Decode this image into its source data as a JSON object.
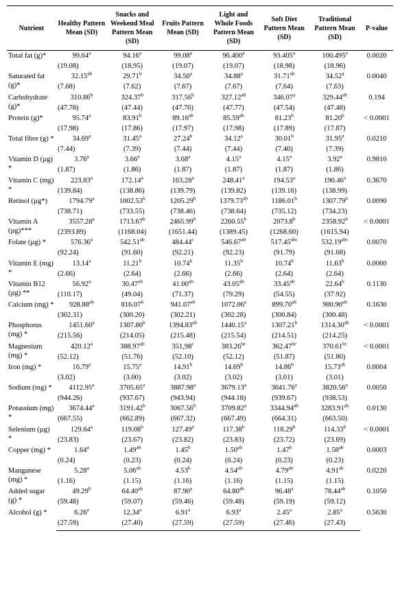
{
  "table": {
    "columns": [
      {
        "label": "Nutrient"
      },
      {
        "label": "Healthy Pattern Mean (SD)"
      },
      {
        "label": "Snacks and Weekend Meal Pattern Mean (SD)"
      },
      {
        "label": "Fruits Pattern Mean (SD)"
      },
      {
        "label": "Light and Whole Foods Pattern Mean (SD)"
      },
      {
        "label": "Soft Diet Pattern Mean (SD)"
      },
      {
        "label": "Traditional Pattern Mean (SD)"
      },
      {
        "label": "P-value"
      }
    ],
    "rows": [
      {
        "nutrient": "Total fat (g)*",
        "cells": [
          {
            "mean": "99.64",
            "sup": "a",
            "sd": "(19.08)"
          },
          {
            "mean": "94.16",
            "sup": "a",
            "sd": "(18.95)"
          },
          {
            "mean": "99.08",
            "sup": "a",
            "sd": "(19.07)"
          },
          {
            "mean": "96.400",
            "sup": "a",
            "sd": "(19.07)"
          },
          {
            "mean": "93.405",
            "sup": "a",
            "sd": "(18.98)"
          },
          {
            "mean": "100.495",
            "sup": "a",
            "sd": "(18.96)"
          }
        ],
        "pvalue": "0.0020"
      },
      {
        "nutrient": "Saturated fat (g)*",
        "cells": [
          {
            "mean": "32.15",
            "sup": "ab",
            "sd": "(7.68)"
          },
          {
            "mean": "29.71",
            "sup": "b",
            "sd": "(7.62)"
          },
          {
            "mean": "34.50",
            "sup": "a",
            "sd": "(7.67)"
          },
          {
            "mean": "34.88",
            "sup": "a",
            "sd": "(7.67)"
          },
          {
            "mean": "31.71",
            "sup": "ab",
            "sd": "(7.64)"
          },
          {
            "mean": "34.52",
            "sup": "a",
            "sd": "(7.63)"
          }
        ],
        "pvalue": "0.0040"
      },
      {
        "nutrient": "Carbohydrate (g)*",
        "cells": [
          {
            "mean": "310.86",
            "sup": "b",
            "sd": "(47.78)"
          },
          {
            "mean": "324.37",
            "sup": "b",
            "sd": "(47.44)"
          },
          {
            "mean": "317.56",
            "sup": "b",
            "sd": "(47.76)"
          },
          {
            "mean": "327.12",
            "sup": "ab",
            "sd": "(47.77)"
          },
          {
            "mean": "346.07",
            "sup": "a",
            "sd": "(47.54)"
          },
          {
            "mean": "329.44",
            "sup": "ab",
            "sd": "(47.48)"
          }
        ],
        "pvalue": "0.194"
      },
      {
        "nutrient": "Protein (g)*",
        "cells": [
          {
            "mean": "95.74",
            "sup": "a",
            "sd": "(17.98)"
          },
          {
            "mean": "83.91",
            "sup": "b",
            "sd": "(17.86)"
          },
          {
            "mean": "89.16",
            "sup": "ab",
            "sd": "(17.97)"
          },
          {
            "mean": "85.59",
            "sup": "ab",
            "sd": "(17.98)"
          },
          {
            "mean": "81.23",
            "sup": "b",
            "sd": "(17.89)"
          },
          {
            "mean": "81.20",
            "sup": "b",
            "sd": "(17.87)"
          }
        ],
        "pvalue": "< 0.0001"
      },
      {
        "nutrient": "Total fibre (g) *",
        "cells": [
          {
            "mean": "34.69",
            "sup": "a",
            "sd": "(7.44)"
          },
          {
            "mean": "31.45",
            "sup": "a",
            "sd": "(7.39)"
          },
          {
            "mean": "27.24",
            "sup": "b",
            "sd": "(7.44)"
          },
          {
            "mean": "34.12",
            "sup": "a",
            "sd": "(7.44)"
          },
          {
            "mean": "30.01",
            "sup": "b",
            "sd": "(7.40)"
          },
          {
            "mean": "31.95",
            "sup": "a",
            "sd": "(7.39)"
          }
        ],
        "pvalue": "0.0210"
      },
      {
        "nutrient": "Vitamin D (µg) *",
        "cells": [
          {
            "mean": "3.76",
            "sup": "a",
            "sd": "(1.87)"
          },
          {
            "mean": "3.66",
            "sup": "a",
            "sd": "(1.86)"
          },
          {
            "mean": "3.68",
            "sup": "a",
            "sd": "(1.87)"
          },
          {
            "mean": "4.15",
            "sup": "a",
            "sd": "(1.87)"
          },
          {
            "mean": "4.15",
            "sup": "a",
            "sd": "(1.87)"
          },
          {
            "mean": "3.92",
            "sup": "a",
            "sd": "(1.86)"
          }
        ],
        "pvalue": "0.9810"
      },
      {
        "nutrient": "Vitamin C (mg) *",
        "cells": [
          {
            "mean": "223.83",
            "sup": "a",
            "sd": "(139.84)"
          },
          {
            "mean": "172.14",
            "sup": "a",
            "sd": "(138.86)"
          },
          {
            "mean": "163.28",
            "sup": "a",
            "sd": "(139.79)"
          },
          {
            "mean": "248.41",
            "sup": "a",
            "sd": "(139.82)"
          },
          {
            "mean": "194.53",
            "sup": "a",
            "sd": "(139.16)"
          },
          {
            "mean": "190.46",
            "sup": "a",
            "sd": "(138.99)"
          }
        ],
        "pvalue": "0.3670"
      },
      {
        "nutrient": "Retinol (µg*)",
        "cells": [
          {
            "mean": "1794.79",
            "sup": "a",
            "sd": "(738.71)"
          },
          {
            "mean": "1002.53",
            "sup": "b",
            "sd": "(733.55)"
          },
          {
            "mean": "1205.29",
            "sup": "b",
            "sd": "(738.46)"
          },
          {
            "mean": "1379.73",
            "sup": "ab",
            "sd": "(738.64)"
          },
          {
            "mean": "1186.01",
            "sup": "b",
            "sd": "(735.12)"
          },
          {
            "mean": "1307.79",
            "sup": "b",
            "sd": "(734.23)"
          }
        ],
        "pvalue": "0.0090"
      },
      {
        "nutrient": "Vitamin A (µg)***",
        "cells": [
          {
            "mean": "3557.28",
            "sup": "a",
            "sd": "(2393.89)"
          },
          {
            "mean": "1713.67",
            "sup": "b",
            "sd": "(1168.04)"
          },
          {
            "mean": "2465.99",
            "sup": "b",
            "sd": "(1651.44)"
          },
          {
            "mean": "2260.55",
            "sup": "b",
            "sd": "(1389.45)"
          },
          {
            "mean": "2073.8",
            "sup": "b",
            "sd": "(1268.60)"
          },
          {
            "mean": "2358.92",
            "sup": "b",
            "sd": "(1615.94)"
          }
        ],
        "pvalue": "< 0.0001"
      },
      {
        "nutrient": "Folate (µg) *",
        "cells": [
          {
            "mean": "576.36",
            "sup": "a",
            "sd": "(92.24)"
          },
          {
            "mean": "542.51",
            "sup": "ab",
            "sd": "(91.60)"
          },
          {
            "mean": "484.44",
            "sup": "c",
            "sd": "(92.21)"
          },
          {
            "mean": "546.67",
            "sup": "ab",
            "sd": "(92.23)"
          },
          {
            "mean": "517.45",
            "sup": "abc",
            "sd": "(91.79)"
          },
          {
            "mean": "532.19",
            "sup": "abc",
            "sd": "(91.68)"
          }
        ],
        "pvalue": "0.0070"
      },
      {
        "nutrient": "Vitamin E (mg) *",
        "cells": [
          {
            "mean": "13.14",
            "sup": "a",
            "sd": "(2.66)"
          },
          {
            "mean": "11.21",
            "sup": "b",
            "sd": "(2.64)"
          },
          {
            "mean": "10.74",
            "sup": "b",
            "sd": "(2.66)"
          },
          {
            "mean": "11.35",
            "sup": "b",
            "sd": "(2.66)"
          },
          {
            "mean": "10.74",
            "sup": "b",
            "sd": "(2.64)"
          },
          {
            "mean": "11.63",
            "sup": "b",
            "sd": "(2.64)"
          }
        ],
        "pvalue": "0.0060"
      },
      {
        "nutrient": "Vitamin B12 (µg) **",
        "cells": [
          {
            "mean": "56.92",
            "sup": "a",
            "sd": "(110.17)"
          },
          {
            "mean": "30.47",
            "sup": "ab",
            "sd": "(49.04)"
          },
          {
            "mean": "41.00",
            "sup": "ab",
            "sd": "(71.37)"
          },
          {
            "mean": "43.05",
            "sup": "ab",
            "sd": "(79.29)"
          },
          {
            "mean": "33.45",
            "sup": "ab",
            "sd": "(54.55)"
          },
          {
            "mean": "22.64",
            "sup": "b",
            "sd": "(37.92)"
          }
        ],
        "pvalue": "0.1130"
      },
      {
        "nutrient": "Calcium (mg) *",
        "cells": [
          {
            "mean": "928.88",
            "sup": "ab",
            "sd": "(302.31)"
          },
          {
            "mean": "816.07",
            "sup": "b",
            "sd": "(300.20)"
          },
          {
            "mean": "941.07",
            "sup": "ab",
            "sd": "(302.21)"
          },
          {
            "mean": "1072.06",
            "sup": "a",
            "sd": "(302.28)"
          },
          {
            "mean": "899.70",
            "sup": "ab",
            "sd": "(300.84)"
          },
          {
            "mean": "900.90",
            "sup": "ab",
            "sd": "(300.48)"
          }
        ],
        "pvalue": "0.1630"
      },
      {
        "nutrient": "Phosphorus (mg) *",
        "cells": [
          {
            "mean": "1451.60",
            "sup": "a",
            "sd": "(215.56)"
          },
          {
            "mean": "1307.80",
            "sup": "b",
            "sd": "(214.05)"
          },
          {
            "mean": "1394.83",
            "sup": "ab",
            "sd": "(215.48)"
          },
          {
            "mean": "1440.15",
            "sup": "a",
            "sd": "(215.54)"
          },
          {
            "mean": "1307.21",
            "sup": "b",
            "sd": "(214.51)"
          },
          {
            "mean": "1314.30",
            "sup": "ab",
            "sd": "(214.25)"
          }
        ],
        "pvalue": "< 0.0001"
      },
      {
        "nutrient": "Magnesium (mg) *",
        "cells": [
          {
            "mean": "420.12",
            "sup": "a",
            "sd": "(52.12)"
          },
          {
            "mean": "388.97",
            "sup": "ab",
            "sd": "(51.76)"
          },
          {
            "mean": "351,98",
            "sup": "c",
            "sd": "(52.10)"
          },
          {
            "mean": "383.26",
            "sup": "bc",
            "sd": "(52.12)"
          },
          {
            "mean": "362.47",
            "sup": "bc",
            "sd": "(51.87)"
          },
          {
            "mean": "370.61",
            "sup": "bc",
            "sd": "(51.80)"
          }
        ],
        "pvalue": "< 0.0001"
      },
      {
        "nutrient": "Iron (mg) *",
        "cells": [
          {
            "mean": "16.79",
            "sup": "a",
            "sd": "(3.02)"
          },
          {
            "mean": "15.75",
            "sup": "a",
            "sd": "(3.00)"
          },
          {
            "mean": "14.91",
            "sup": "b",
            "sd": "(3.02)"
          },
          {
            "mean": "14.69",
            "sup": "b",
            "sd": "(3.02)"
          },
          {
            "mean": "14.86",
            "sup": "b",
            "sd": "(3.01)"
          },
          {
            "mean": "15.73",
            "sup": "ab",
            "sd": "(3.01)"
          }
        ],
        "pvalue": "0.0004"
      },
      {
        "nutrient": "Sodium (mg) *",
        "cells": [
          {
            "mean": "4112.95",
            "sup": "a",
            "sd": "(944.26)"
          },
          {
            "mean": "3705.65",
            "sup": "a",
            "sd": "(937.67)"
          },
          {
            "mean": "3887.98",
            "sup": "a",
            "sd": "(943.94)"
          },
          {
            "mean": "3679.13",
            "sup": "a",
            "sd": "(944.18)"
          },
          {
            "mean": "3641.76",
            "sup": "a",
            "sd": "(939.67)"
          },
          {
            "mean": "3820.56",
            "sup": "a",
            "sd": "(938.53)"
          }
        ],
        "pvalue": "0.0050"
      },
      {
        "nutrient": "Potassium (mg) *",
        "cells": [
          {
            "mean": "3674.44",
            "sup": "a",
            "sd": "(667.55)"
          },
          {
            "mean": "3191.42",
            "sup": "b",
            "sd": "(662.89)"
          },
          {
            "mean": "3067.56",
            "sup": "b",
            "sd": "(667.32)"
          },
          {
            "mean": "3709.82",
            "sup": "a",
            "sd": "(667.49)"
          },
          {
            "mean": "3344.94",
            "sup": "ab",
            "sd": "(664.31)"
          },
          {
            "mean": "3283.91",
            "sup": "ab",
            "sd": "(663.50)"
          }
        ],
        "pvalue": "0.0130"
      },
      {
        "nutrient": "Selenium (µg) *",
        "cells": [
          {
            "mean": "129.64",
            "sup": "a",
            "sd": "(23.83)"
          },
          {
            "mean": "119.08",
            "sup": "b",
            "sd": "(23.67)"
          },
          {
            "mean": "127.49",
            "sup": "a",
            "sd": "(23.82)"
          },
          {
            "mean": "117.38",
            "sup": "b",
            "sd": "(23.83)"
          },
          {
            "mean": "118.29",
            "sup": "b",
            "sd": "(23.72)"
          },
          {
            "mean": "114.33",
            "sup": "b",
            "sd": "(23.69)"
          }
        ],
        "pvalue": "< 0.0001"
      },
      {
        "nutrient": "Copper (mg) *",
        "cells": [
          {
            "mean": "1.64",
            "sup": "a",
            "sd": "(0.24)"
          },
          {
            "mean": "1.49",
            "sup": "ab",
            "sd": "(0.23)"
          },
          {
            "mean": "1.45",
            "sup": "b",
            "sd": "(0.24)"
          },
          {
            "mean": "1.50",
            "sup": "ab",
            "sd": "(0.24)"
          },
          {
            "mean": "1.47",
            "sup": "b",
            "sd": "(0.23)"
          },
          {
            "mean": "1.58",
            "sup": "ab",
            "sd": "(0.23)"
          }
        ],
        "pvalue": "0.0003"
      },
      {
        "nutrient": "Manganese (mg) *",
        "cells": [
          {
            "mean": "5.28",
            "sup": "a",
            "sd": "(1.16)"
          },
          {
            "mean": "5.06",
            "sup": "ab",
            "sd": "(1.15)"
          },
          {
            "mean": "4.53",
            "sup": "b",
            "sd": "(1.16)"
          },
          {
            "mean": "4.54",
            "sup": "ab",
            "sd": "(1.16)"
          },
          {
            "mean": "4.79",
            "sup": "ab",
            "sd": "(1.15)"
          },
          {
            "mean": "4.91",
            "sup": "ab",
            "sd": "(1.15)"
          }
        ],
        "pvalue": "0.0220"
      },
      {
        "nutrient": "Added sugar (g) *",
        "cells": [
          {
            "mean": "49.29",
            "sup": "b",
            "sd": "(59.48)"
          },
          {
            "mean": "64.40",
            "sup": "ab",
            "sd": "(59.07)"
          },
          {
            "mean": "87.90",
            "sup": "a",
            "sd": "(59.46)"
          },
          {
            "mean": "64.80",
            "sup": "ab",
            "sd": "(59.48)"
          },
          {
            "mean": "96.48",
            "sup": "a",
            "sd": "(59.19)"
          },
          {
            "mean": "78.44",
            "sup": "ab",
            "sd": "(59.12)"
          }
        ],
        "pvalue": "0.1050"
      },
      {
        "nutrient": "Alcohol (g) *",
        "cells": [
          {
            "mean": "6.26",
            "sup": "a",
            "sd": "(27.59)"
          },
          {
            "mean": "12.34",
            "sup": "a",
            "sd": "(27.40)"
          },
          {
            "mean": "6.91",
            "sup": "a",
            "sd": "(27.59)"
          },
          {
            "mean": "6.93",
            "sup": "a",
            "sd": "(27.59)"
          },
          {
            "mean": "2.45",
            "sup": "a",
            "sd": "(27.46)"
          },
          {
            "mean": "2.85",
            "sup": "a",
            "sd": "(27.43)"
          }
        ],
        "pvalue": "0.5630"
      }
    ]
  }
}
